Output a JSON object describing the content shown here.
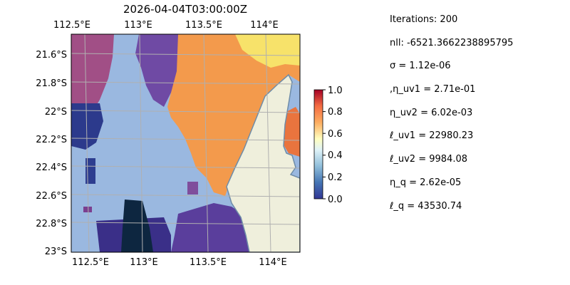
{
  "map": {
    "title": "2026-04-04T03:00:00Z",
    "lon_ticks": [
      "112.5°E",
      "113°E",
      "113.5°E",
      "114°E"
    ],
    "lat_ticks": [
      "21.6°S",
      "21.8°S",
      "22°S",
      "22.2°S",
      "22.4°S",
      "22.6°S",
      "22.8°S",
      "23°S"
    ],
    "colors": {
      "ocean": "#9ab8e0",
      "land": "#efefdc",
      "coast": "#6e8ca8",
      "grid": "#b0b0b0"
    }
  },
  "colorbar": {
    "ticks": [
      "0.0",
      "0.2",
      "0.4",
      "0.6",
      "0.8",
      "1.0"
    ],
    "colormap": "RdYlBu_r"
  },
  "stats": {
    "iterations": "Iterations: 200",
    "nll": "nll: -6521.3662238895795",
    "sigma": "σ = 1.12e-06",
    "eta_uv1": ",η_uv1 = 2.71e-01",
    "eta_uv2": "η_uv2 = 6.02e-03",
    "l_uv1": "ℓ_uv1 = 22980.23",
    "l_uv2": "ℓ_uv2 = 9984.08",
    "eta_q": "η_q = 2.62e-05",
    "l_q": "ℓ_q = 43530.74"
  }
}
